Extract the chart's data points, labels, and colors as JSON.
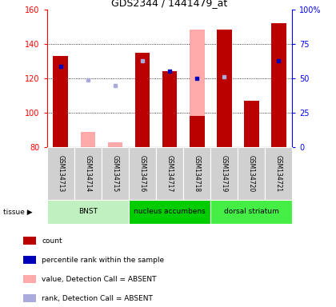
{
  "title": "GDS2344 / 1441479_at",
  "samples": [
    "GSM134713",
    "GSM134714",
    "GSM134715",
    "GSM134716",
    "GSM134717",
    "GSM134718",
    "GSM134719",
    "GSM134720",
    "GSM134721"
  ],
  "ylim": [
    80,
    160
  ],
  "yticks_left": [
    80,
    100,
    120,
    140,
    160
  ],
  "yticks_right_vals": [
    0,
    25,
    50,
    75,
    100
  ],
  "yticks_right_labels": [
    "0",
    "25",
    "50",
    "75",
    "100%"
  ],
  "count_present": [
    133,
    null,
    null,
    null,
    124,
    null,
    null,
    null,
    152
  ],
  "count_absent": [
    null,
    null,
    null,
    135,
    null,
    98,
    148,
    107,
    null
  ],
  "pink_bars": [
    null,
    89,
    83,
    135,
    null,
    148,
    148,
    107,
    null
  ],
  "blue_present": [
    127,
    null,
    null,
    null,
    124,
    120,
    null,
    null,
    130
  ],
  "blue_absent": [
    null,
    119,
    116,
    130,
    null,
    null,
    121,
    null,
    null
  ],
  "tissue_groups": [
    {
      "label": "BNST",
      "start": 0,
      "end": 3
    },
    {
      "label": "nucleus accumbens",
      "start": 3,
      "end": 6
    },
    {
      "label": "dorsal striatum",
      "start": 6,
      "end": 9
    }
  ],
  "tissue_colors": [
    "#c0f0c0",
    "#00cc00",
    "#44ee44"
  ],
  "bar_width": 0.55,
  "col_red_present": "#bb0000",
  "col_red_absent": "#ffaaaa",
  "col_blue_present": "#0000bb",
  "col_blue_absent": "#aaaadd",
  "col_gray_bg": "#d0d0d0",
  "legend_items": [
    {
      "color": "#bb0000",
      "label": "count"
    },
    {
      "color": "#0000bb",
      "label": "percentile rank within the sample"
    },
    {
      "color": "#ffaaaa",
      "label": "value, Detection Call = ABSENT"
    },
    {
      "color": "#aaaadd",
      "label": "rank, Detection Call = ABSENT"
    }
  ]
}
